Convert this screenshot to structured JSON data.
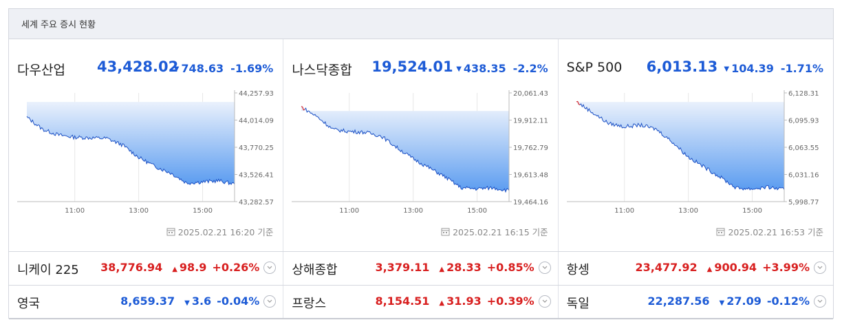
{
  "header": {
    "title": "세계 주요 증시 현황"
  },
  "panels": [
    {
      "name": "다우산업",
      "value": "43,428.02",
      "change": "748.63",
      "percent": "-1.69%",
      "direction": "down",
      "stamp": "2025.02.21 16:20 기준"
    },
    {
      "name": "나스닥종합",
      "value": "19,524.01",
      "change": "438.35",
      "percent": "-2.2%",
      "direction": "down",
      "stamp": "2025.02.21 16:15 기준"
    },
    {
      "name": "S&P 500",
      "value": "6,013.13",
      "change": "104.39",
      "percent": "-1.71%",
      "direction": "down",
      "stamp": "2025.02.21 16:53 기준"
    }
  ],
  "rows": [
    [
      {
        "name": "니케이 225",
        "value": "38,776.94",
        "change": "98.9",
        "percent": "+0.26%",
        "direction": "up"
      },
      {
        "name": "상해종합",
        "value": "3,379.11",
        "change": "28.33",
        "percent": "+0.85%",
        "direction": "up"
      },
      {
        "name": "항셍",
        "value": "23,477.92",
        "change": "900.94",
        "percent": "+3.99%",
        "direction": "up"
      }
    ],
    [
      {
        "name": "영국",
        "value": "8,659.37",
        "change": "3.6",
        "percent": "-0.04%",
        "direction": "down"
      },
      {
        "name": "프랑스",
        "value": "8,154.51",
        "change": "31.93",
        "percent": "+0.39%",
        "direction": "up"
      },
      {
        "name": "독일",
        "value": "22,287.56",
        "change": "27.09",
        "percent": "-0.12%",
        "direction": "down"
      }
    ]
  ],
  "icons": {
    "down": "triangle-down-icon",
    "up": "triangle-up-icon",
    "stamp": "calendar-icon",
    "toggle": "chevron-down-icon"
  },
  "colors": {
    "up": "#d81f1f",
    "down": "#1d5bd6",
    "area_top": "#eaf1fc",
    "area_bottom": "#5b9cf0",
    "line": "#1a4fc4"
  },
  "chart_data": [
    {
      "type": "area",
      "x_ticks": [
        "11:00",
        "13:00",
        "15:00"
      ],
      "y_ticks": [
        "44,257.93",
        "44,014.09",
        "43,770.25",
        "43,526.41",
        "43,282.57"
      ],
      "ylim": [
        43282.57,
        44257.93
      ],
      "x": [
        "09:30",
        "10:00",
        "10:30",
        "11:00",
        "11:30",
        "12:00",
        "12:30",
        "13:00",
        "13:30",
        "14:00",
        "14:30",
        "15:00",
        "15:30",
        "16:00"
      ],
      "values": [
        44040,
        43930,
        43880,
        43860,
        43855,
        43850,
        43790,
        43680,
        43600,
        43540,
        43450,
        43460,
        43470,
        43440
      ],
      "baseline": 44176.65
    },
    {
      "type": "area",
      "x_ticks": [
        "11:00",
        "13:00",
        "15:00"
      ],
      "y_ticks": [
        "20,061.43",
        "19,912.11",
        "19,762.79",
        "19,613.48",
        "19,464.16"
      ],
      "ylim": [
        19464.16,
        20061.43
      ],
      "x": [
        "09:30",
        "10:00",
        "10:30",
        "11:00",
        "11:30",
        "12:00",
        "12:30",
        "13:00",
        "13:30",
        "14:00",
        "14:30",
        "15:00",
        "15:30",
        "16:00"
      ],
      "values": [
        19985,
        19930,
        19860,
        19850,
        19845,
        19825,
        19760,
        19700,
        19650,
        19600,
        19540,
        19535,
        19540,
        19525
      ],
      "baseline": 19962.36
    },
    {
      "type": "area",
      "x_ticks": [
        "11:00",
        "13:00",
        "15:00"
      ],
      "y_ticks": [
        "6,128.31",
        "6,095.93",
        "6,063.55",
        "6,031.16",
        "5,998.77"
      ],
      "ylim": [
        5998.77,
        6128.31
      ],
      "x": [
        "09:30",
        "10:00",
        "10:30",
        "11:00",
        "11:30",
        "12:00",
        "12:30",
        "13:00",
        "13:30",
        "14:00",
        "14:30",
        "15:00",
        "15:30",
        "16:00"
      ],
      "values": [
        6118,
        6105,
        6092,
        6088,
        6090,
        6085,
        6070,
        6052,
        6040,
        6028,
        6015,
        6014,
        6016,
        6013
      ],
      "baseline": 6117.52
    }
  ]
}
